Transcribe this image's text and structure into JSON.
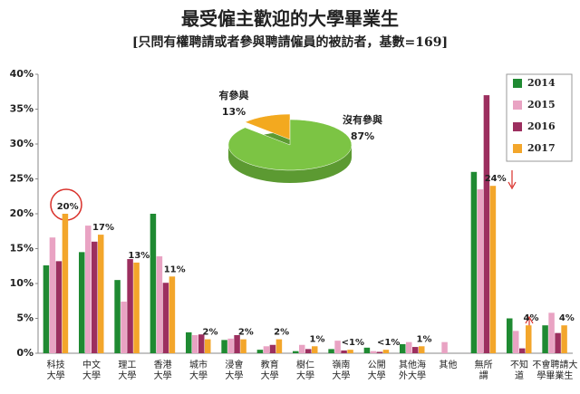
{
  "chart_data": [
    {
      "type": "bar",
      "title": "最受僱主歡迎的大學畢業生",
      "subtitle": "[只問有權聘請或者參與聘請僱員的被訪者，基數=169]",
      "categories": [
        "科技大學",
        "中文大學",
        "理工大學",
        "香港大學",
        "城市大學",
        "浸會大學",
        "教育大學",
        "樹仁大學",
        "嶺南大學",
        "公開大學",
        "其他海外大學",
        "其他",
        "無所謂",
        "不知道",
        "不會聘請大學畢業生"
      ],
      "series": [
        {
          "name": "2014",
          "color": "#1f8a32",
          "values": [
            12.6,
            14.5,
            10.5,
            20,
            3,
            1.9,
            0.5,
            0.3,
            0.6,
            0.8,
            1.3,
            0,
            26,
            5,
            4
          ]
        },
        {
          "name": "2015",
          "color": "#e9a3c3",
          "values": [
            16.6,
            18.3,
            7.4,
            13.9,
            2.6,
            2.1,
            1,
            1.2,
            1.8,
            0.3,
            1.6,
            1.6,
            23.5,
            3.2,
            5.8
          ]
        },
        {
          "name": "2016",
          "color": "#9c2f5f",
          "values": [
            13.2,
            16,
            13.5,
            10.1,
            2.7,
            2.6,
            1.2,
            0.6,
            0.4,
            0.2,
            0.9,
            0,
            37,
            0.7,
            2.9
          ]
        },
        {
          "name": "2017",
          "color": "#f3a62b",
          "values": [
            20,
            17,
            13,
            11,
            2,
            2,
            2,
            1,
            0.5,
            0.5,
            1,
            0,
            24,
            4,
            4
          ],
          "value_labels": [
            "20%",
            "17%",
            "13%",
            "11%",
            "2%",
            "2%",
            "2%",
            "1%",
            "<1%",
            "<1%",
            "1%",
            null,
            "24%",
            "4%",
            "4%"
          ]
        }
      ],
      "ylim": [
        0,
        40
      ],
      "yticks": [
        {
          "value": 0,
          "label": "0%"
        },
        {
          "value": 5,
          "label": "5%"
        },
        {
          "value": 10,
          "label": "10%"
        },
        {
          "value": 15,
          "label": "15%"
        },
        {
          "value": 20,
          "label": "20%"
        },
        {
          "value": 25,
          "label": "25%"
        },
        {
          "value": 30,
          "label": "30%"
        },
        {
          "value": 35,
          "label": "35%"
        },
        {
          "value": 40,
          "label": "40%"
        }
      ],
      "grid": false,
      "legend": "upper right"
    },
    {
      "type": "pie",
      "categories": [
        "有參與",
        "沒有參與"
      ],
      "values": [
        13,
        87
      ],
      "value_labels": [
        "13%",
        "87%"
      ],
      "colors": [
        "#f3a91f",
        "#7cc444"
      ]
    }
  ]
}
